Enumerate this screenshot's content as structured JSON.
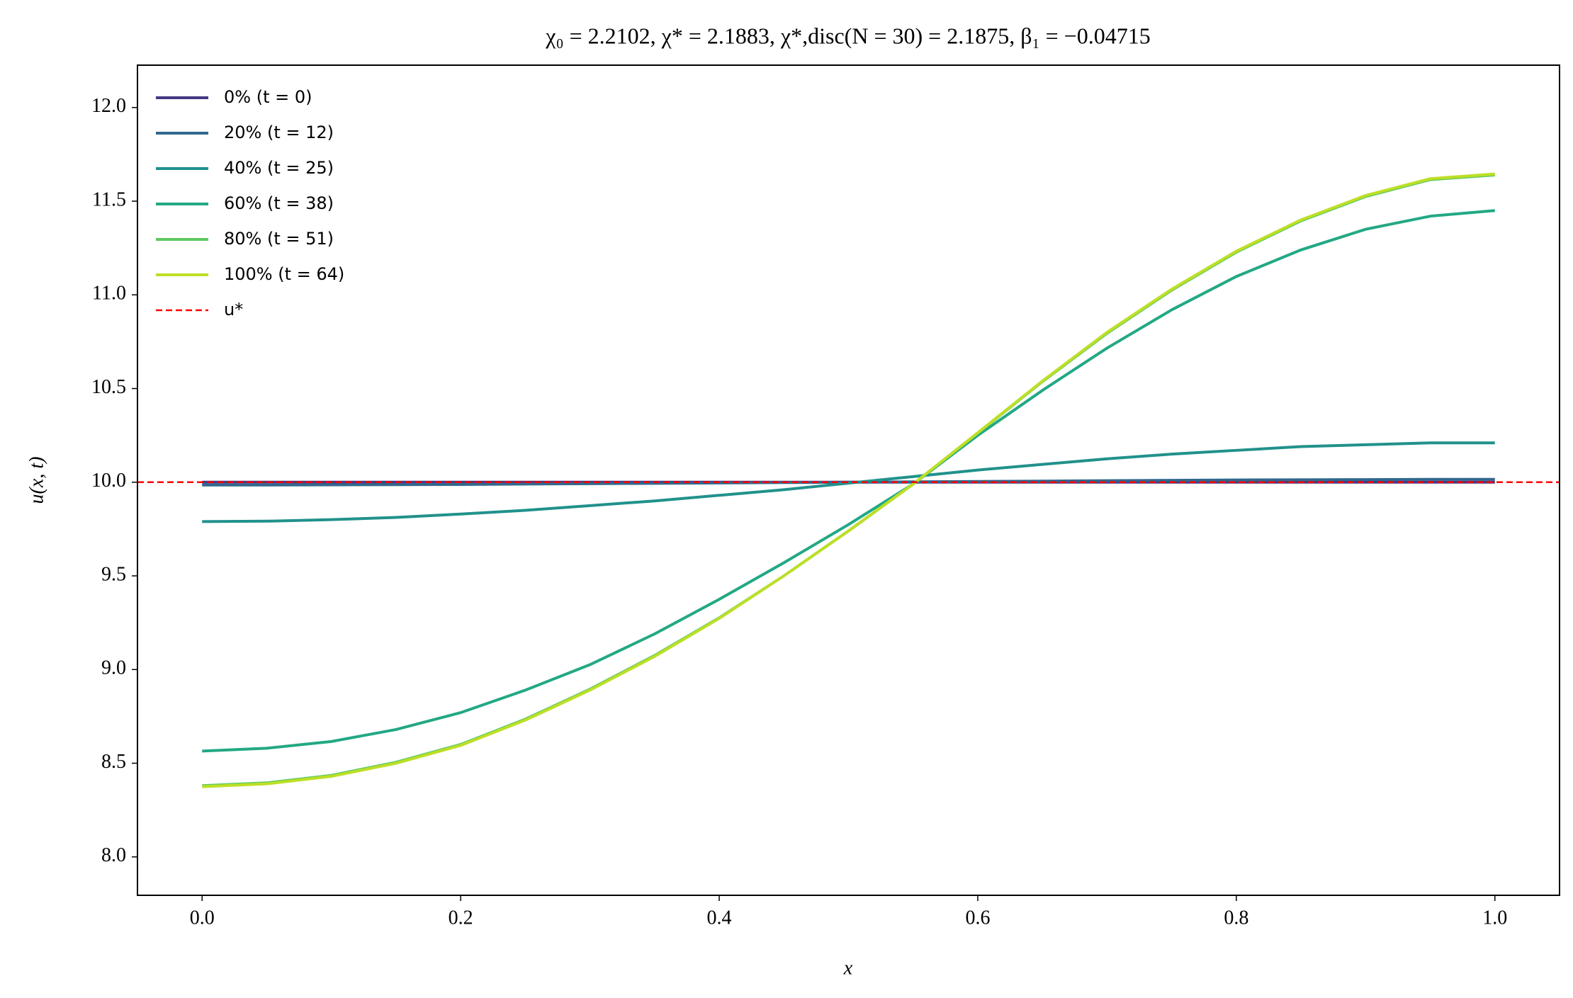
{
  "chart_data": {
    "type": "line",
    "title": "χ₀ = 2.2102,  χ* = 2.1883,  χ*,disc(N = 30) = 2.1875,  β₁ = −0.04715",
    "xlabel": "x",
    "ylabel": "u(x, t)",
    "x": [
      0,
      0.05,
      0.1,
      0.15,
      0.2,
      0.25,
      0.3,
      0.35,
      0.4,
      0.45,
      0.5,
      0.55,
      0.6,
      0.65,
      0.7,
      0.75,
      0.8,
      0.85,
      0.9,
      0.95,
      1.0
    ],
    "series": [
      {
        "name": "0% (t = 0)",
        "color": "#443983",
        "values": [
          10,
          10,
          10,
          10,
          10,
          10,
          10,
          10,
          10,
          10,
          10,
          10,
          10,
          10,
          10,
          10,
          10,
          10,
          10,
          10,
          10
        ]
      },
      {
        "name": "20% (t = 12)",
        "color": "#31688e",
        "values": [
          9.985,
          9.985,
          9.986,
          9.987,
          9.988,
          9.99,
          9.992,
          9.994,
          9.996,
          9.998,
          10.0,
          10.002,
          10.004,
          10.006,
          10.008,
          10.01,
          10.012,
          10.013,
          10.014,
          10.015,
          10.015
        ]
      },
      {
        "name": "40% (t = 25)",
        "color": "#21918c",
        "values": [
          9.79,
          9.792,
          9.8,
          9.812,
          9.83,
          9.85,
          9.875,
          9.9,
          9.93,
          9.96,
          9.995,
          10.03,
          10.065,
          10.095,
          10.125,
          10.15,
          10.17,
          10.19,
          10.2,
          10.21,
          10.21
        ]
      },
      {
        "name": "60% (t = 38)",
        "color": "#22a884",
        "values": [
          8.565,
          8.58,
          8.616,
          8.68,
          8.77,
          8.89,
          9.026,
          9.19,
          9.375,
          9.57,
          9.774,
          9.99,
          10.25,
          10.49,
          10.716,
          10.92,
          11.098,
          11.24,
          11.35,
          11.42,
          11.45
        ]
      },
      {
        "name": "80% (t = 51)",
        "color": "#5ec962",
        "values": [
          8.38,
          8.395,
          8.435,
          8.505,
          8.6,
          8.735,
          8.895,
          9.075,
          9.276,
          9.5,
          9.74,
          9.99,
          10.262,
          10.537,
          10.795,
          11.025,
          11.228,
          11.395,
          11.525,
          11.615,
          11.64
        ]
      },
      {
        "name": "100% (t = 64)",
        "color": "#bddf26",
        "values": [
          8.375,
          8.39,
          8.43,
          8.5,
          8.595,
          8.73,
          8.89,
          9.07,
          9.273,
          9.5,
          9.74,
          9.99,
          10.264,
          10.54,
          10.8,
          11.03,
          11.233,
          11.4,
          11.53,
          11.62,
          11.645
        ]
      }
    ],
    "reference_line": {
      "name": "u*",
      "value": 10,
      "color": "#ff0000",
      "style": "dashed"
    },
    "xlim": [
      -0.05,
      1.05
    ],
    "xticks": [
      {
        "value": 0,
        "label": "0.0"
      },
      0.2,
      0.4,
      0.6,
      0.8,
      {
        "value": 1,
        "label": "1.0"
      }
    ],
    "ylim": [
      7.795,
      12.226
    ],
    "yticks": [
      {
        "value": 8,
        "label": "8.0"
      },
      8.5,
      {
        "value": 9,
        "label": "9.0"
      },
      9.5,
      {
        "value": 10,
        "label": "10.0"
      },
      10.5,
      {
        "value": 11,
        "label": "11.0"
      },
      11.5,
      {
        "value": 12,
        "label": "12.0"
      }
    ],
    "grid": false,
    "legend": "upper left"
  }
}
